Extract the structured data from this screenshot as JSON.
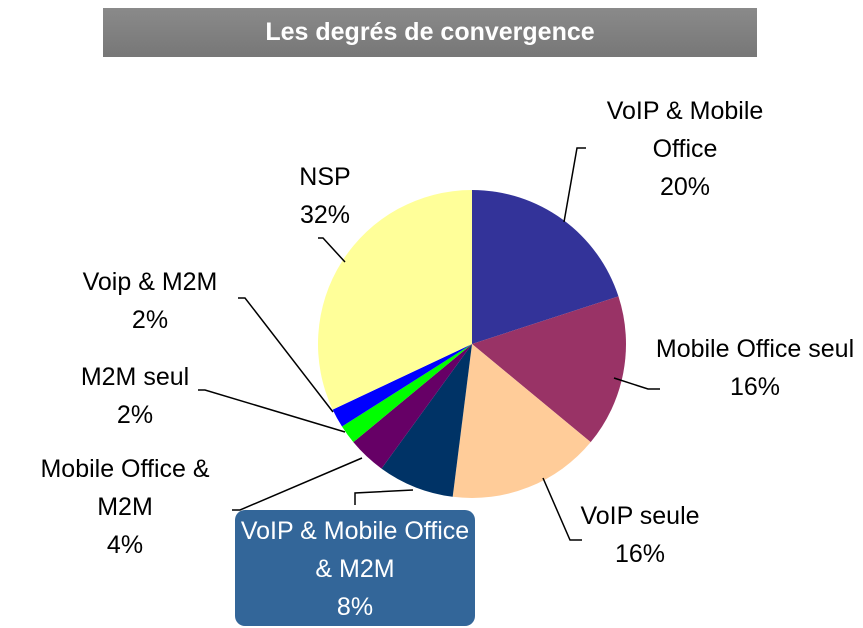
{
  "chart_data": {
    "type": "pie",
    "title": "Les degrés de convergence",
    "categories": [
      "VoIP & Mobile Office",
      "Mobile Office seul",
      "VoIP seule",
      "VoIP & Mobile Office & M2M",
      "Mobile Office & M2M",
      "M2M seul",
      "Voip & M2M",
      "NSP"
    ],
    "values": [
      20,
      16,
      16,
      8,
      4,
      2,
      2,
      32
    ],
    "value_labels": [
      "20%",
      "16%",
      "16%",
      "8%",
      "4%",
      "2%",
      "2%",
      "32%"
    ],
    "colors": [
      "#333399",
      "#993366",
      "#ffcc99",
      "#003366",
      "#660066",
      "#00ff00",
      "#0000ff",
      "#ffff99"
    ]
  }
}
